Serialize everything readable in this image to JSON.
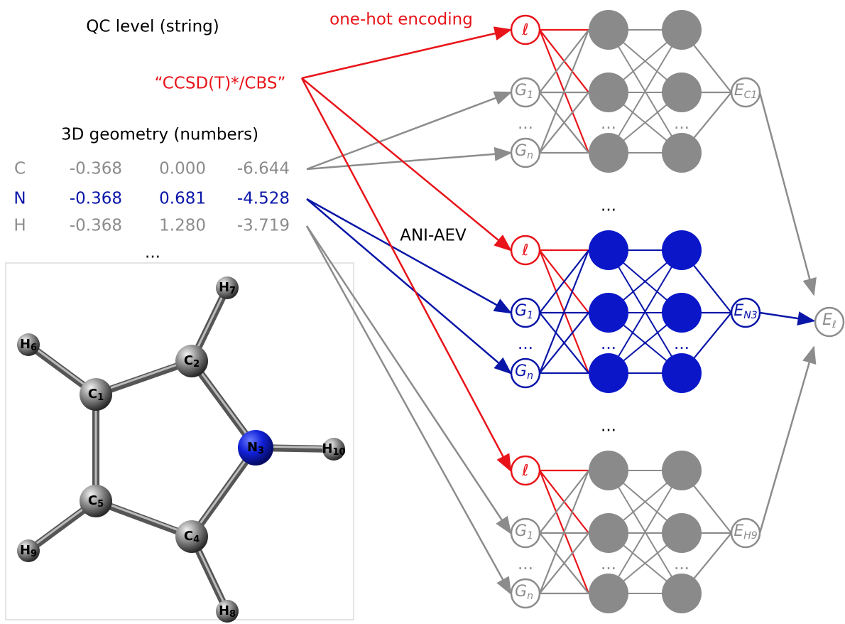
{
  "labels": {
    "qc_level": "QC level (string)",
    "qc_string": "“CCSD(T)*/CBS”",
    "one_hot": "one-hot encoding",
    "geometry": "3D geometry (numbers)",
    "ani_aev": "ANI-AEV",
    "ellipsis": "..."
  },
  "table": {
    "rows": [
      [
        "C",
        "-0.368",
        "0.000",
        "-6.644"
      ],
      [
        "N",
        "-0.368",
        "0.681",
        "-4.528"
      ],
      [
        "H",
        "-0.368",
        "1.280",
        "-3.719"
      ]
    ]
  },
  "networks": [
    {
      "level_input": "ℓ",
      "inputs": [
        {
          "symbol": "G",
          "sub": "1"
        },
        {
          "symbol": "G",
          "sub": "n"
        }
      ],
      "output": {
        "symbol": "E",
        "sub": "C1"
      }
    },
    {
      "level_input": "ℓ",
      "inputs": [
        {
          "symbol": "G",
          "sub": "1"
        },
        {
          "symbol": "G",
          "sub": "n"
        }
      ],
      "output": {
        "symbol": "E",
        "sub": "N3"
      }
    },
    {
      "level_input": "ℓ",
      "inputs": [
        {
          "symbol": "G",
          "sub": "1"
        },
        {
          "symbol": "G",
          "sub": "n"
        }
      ],
      "output": {
        "symbol": "E",
        "sub": "H9"
      }
    }
  ],
  "final_output": {
    "symbol": "E",
    "sub": "ℓ"
  },
  "molecule": {
    "atoms": [
      {
        "symbol": "C",
        "index": "1"
      },
      {
        "symbol": "C",
        "index": "2"
      },
      {
        "symbol": "N",
        "index": "3"
      },
      {
        "symbol": "C",
        "index": "4"
      },
      {
        "symbol": "C",
        "index": "5"
      },
      {
        "symbol": "H",
        "index": "6"
      },
      {
        "symbol": "H",
        "index": "7"
      },
      {
        "symbol": "H",
        "index": "8"
      },
      {
        "symbol": "H",
        "index": "9"
      },
      {
        "symbol": "H",
        "index": "10"
      }
    ]
  }
}
